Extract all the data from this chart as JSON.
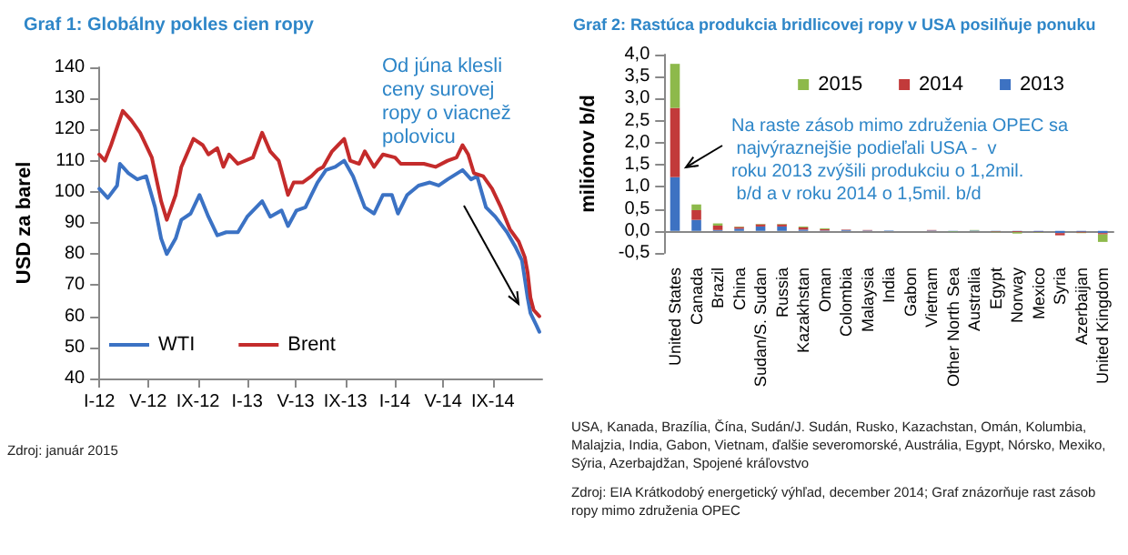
{
  "chart_data": [
    {
      "type": "line",
      "title": "Graf 1: Globálny pokles cien ropy",
      "ylabel": "USD za barel",
      "xlim": [
        "2012-01",
        "2015-01"
      ],
      "xticks": [
        {
          "value": "2012-01",
          "label": "I-12"
        },
        {
          "value": "2012-05",
          "label": "V-12"
        },
        {
          "value": "2012-09",
          "label": "IX-12"
        },
        {
          "value": "2013-01",
          "label": "I-13"
        },
        {
          "value": "2013-05",
          "label": "V-13"
        },
        {
          "value": "2013-09",
          "label": "IX-13"
        },
        {
          "value": "2014-01",
          "label": "I-14"
        },
        {
          "value": "2014-05",
          "label": "V-14"
        },
        {
          "value": "2014-09",
          "label": "IX-14"
        }
      ],
      "ylim": [
        40,
        140
      ],
      "yticks": [
        40,
        50,
        60,
        70,
        80,
        90,
        100,
        110,
        120,
        130,
        140
      ],
      "grid": false,
      "legend": "bottom left",
      "marker": "none",
      "line_style": "solid",
      "annotations": [
        "Od júna klesli ceny surovej ropy o viacnež polovicu",
        "Zdroj: január 2015"
      ],
      "series": [
        {
          "name": "WTI",
          "color": "#3b72c4",
          "x": [
            "2012-01-01",
            "2012-01-22",
            "2012-02-14",
            "2012-02-21",
            "2012-03-13",
            "2012-04-04",
            "2012-04-26",
            "2012-05-18",
            "2012-06-02",
            "2012-06-16",
            "2012-07-08",
            "2012-07-22",
            "2012-08-14",
            "2012-09-05",
            "2012-09-27",
            "2012-10-19",
            "2012-11-10",
            "2012-12-09",
            "2013-01-01",
            "2013-02-07",
            "2013-02-27",
            "2013-03-27",
            "2013-04-12",
            "2013-05-03",
            "2013-05-25",
            "2013-06-09",
            "2013-06-24",
            "2013-07-15",
            "2013-08-07",
            "2013-08-29",
            "2013-09-20",
            "2013-10-19",
            "2013-11-11",
            "2013-12-03",
            "2013-12-25",
            "2014-01-09",
            "2014-02-01",
            "2014-03-01",
            "2014-03-29",
            "2014-04-20",
            "2014-05-12",
            "2014-06-18",
            "2014-07-09",
            "2014-07-24",
            "2014-08-15",
            "2014-09-07",
            "2014-10-06",
            "2014-10-28",
            "2014-11-12",
            "2014-11-19",
            "2014-11-26",
            "2014-12-03",
            "2014-12-18",
            "2014-12-25"
          ],
          "values": [
            101,
            98,
            102,
            109,
            106,
            104,
            105,
            95,
            85,
            80,
            85,
            91,
            93,
            99,
            92,
            86,
            87,
            87,
            92,
            97,
            92,
            94,
            89,
            94,
            95,
            99,
            103,
            107,
            108,
            110,
            105,
            95,
            93,
            99,
            99,
            93,
            99,
            102,
            103,
            102,
            104,
            107,
            104,
            105,
            95,
            92,
            87,
            82,
            78,
            72,
            66,
            61,
            57,
            55
          ]
        },
        {
          "name": "Brent",
          "color": "#c42b2b",
          "x": [
            "2012-01-01",
            "2012-01-15",
            "2012-01-30",
            "2012-02-28",
            "2012-03-20",
            "2012-04-11",
            "2012-05-10",
            "2012-06-02",
            "2012-06-16",
            "2012-07-08",
            "2012-07-22",
            "2012-08-21",
            "2012-09-13",
            "2012-09-27",
            "2012-10-19",
            "2012-11-03",
            "2012-11-17",
            "2012-12-09",
            "2013-01-15",
            "2013-02-07",
            "2013-02-27",
            "2013-03-20",
            "2013-04-12",
            "2013-04-26",
            "2013-05-18",
            "2013-06-09",
            "2013-06-24",
            "2013-07-08",
            "2013-07-30",
            "2013-08-14",
            "2013-08-29",
            "2013-09-13",
            "2013-10-05",
            "2013-10-19",
            "2013-11-11",
            "2013-12-03",
            "2014-01-02",
            "2014-01-16",
            "2014-02-14",
            "2014-03-14",
            "2014-04-12",
            "2014-05-12",
            "2014-06-03",
            "2014-06-18",
            "2014-07-02",
            "2014-07-16",
            "2014-08-08",
            "2014-08-30",
            "2014-09-21",
            "2014-10-13",
            "2014-11-04",
            "2014-11-19",
            "2014-11-26",
            "2014-12-03",
            "2014-12-11",
            "2014-12-25"
          ],
          "values": [
            112,
            110,
            115,
            126,
            123,
            119,
            111,
            97,
            91,
            99,
            108,
            117,
            115,
            112,
            114,
            108,
            112,
            109,
            111,
            119,
            113,
            110,
            99,
            103,
            103,
            105,
            107,
            108,
            113,
            115,
            117,
            110,
            109,
            113,
            108,
            112,
            111,
            109,
            109,
            109,
            108,
            110,
            111,
            115,
            112,
            106,
            105,
            101,
            95,
            88,
            84,
            79,
            74,
            66,
            62,
            60
          ]
        }
      ]
    },
    {
      "type": "bar",
      "stacked": true,
      "title": "Graf 2: Rastúca produkcia bridlicovej ropy v USA posilňuje ponuku",
      "ylabel": "miliónov b/d",
      "categories": [
        "United States",
        "Canada",
        "Brazil",
        "China",
        "Sudan/S. Sudan",
        "Russia",
        "Kazakhstan",
        "Oman",
        "Colombia",
        "Malaysia",
        "India",
        "Gabon",
        "Vietnam",
        "Other North Sea",
        "Australia",
        "Egypt",
        "Norway",
        "Mexico",
        "Syria",
        "Azerbaijan",
        "United Kingdom"
      ],
      "ylim": [
        -0.5,
        4
      ],
      "yticks": [
        {
          "value": -0.5,
          "label": "-0,5"
        },
        {
          "value": 0,
          "label": "0,0"
        },
        {
          "value": 0.5,
          "label": "0,5"
        },
        {
          "value": 1,
          "label": "1,0"
        },
        {
          "value": 1.5,
          "label": "1,5"
        },
        {
          "value": 2,
          "label": "2,0"
        },
        {
          "value": 2.5,
          "label": "2,5"
        },
        {
          "value": 3,
          "label": "3,0"
        },
        {
          "value": 3.5,
          "label": "3,5"
        },
        {
          "value": 4,
          "label": "4,0"
        }
      ],
      "grid": false,
      "legend": "top right",
      "annotations": [
        "Na raste zásob mimo združenia OPEC sa najvýraznejšie podieľali USA -  v roku 2013 zvýšili produkciu o 1,2mil. b/d a v roku 2014 o 1,5mil. b/d",
        "USA, Kanada, Brazília, Čína, Sudán/J. Sudán, Rusko, Kazachstan, Omán, Kolumbia, Malajzia, India, Gabon, Vietnam, ďalšie severomorské, Austrália, Egypt, Nórsko, Mexiko, Sýria, Azerbajdžan, Spojené kráľovstvo",
        "Zdroj: EIA  Krátkodobý energetický výhľad, december 2014; Graf znázorňuje rast zásob ropy mimo združenia OPEC"
      ],
      "series": [
        {
          "name": "2013",
          "color": "#3d72c2",
          "values": [
            1.22,
            0.25,
            0.02,
            0.05,
            0.1,
            0.1,
            0.03,
            0.01,
            0.02,
            0.01,
            0.01,
            0,
            0.01,
            -0.01,
            0.01,
            -0.01,
            -0.01,
            -0.02,
            -0.05,
            -0.02,
            -0.05
          ]
        },
        {
          "name": "2014",
          "color": "#c23a3a",
          "values": [
            1.57,
            0.22,
            0.1,
            0.04,
            0.05,
            0.05,
            0.05,
            0.03,
            0.01,
            0.01,
            0,
            0,
            0.01,
            0,
            0,
            -0.01,
            -0.02,
            -0.01,
            -0.05,
            -0.02,
            -0.03
          ]
        },
        {
          "name": "2015",
          "color": "#8db94b",
          "values": [
            1,
            0.13,
            0.05,
            0.01,
            0.01,
            0.01,
            0.02,
            0.02,
            0,
            0,
            0,
            0,
            0,
            -0.01,
            0.01,
            -0.01,
            -0.03,
            -0.01,
            0,
            -0.01,
            -0.17
          ]
        }
      ]
    }
  ]
}
